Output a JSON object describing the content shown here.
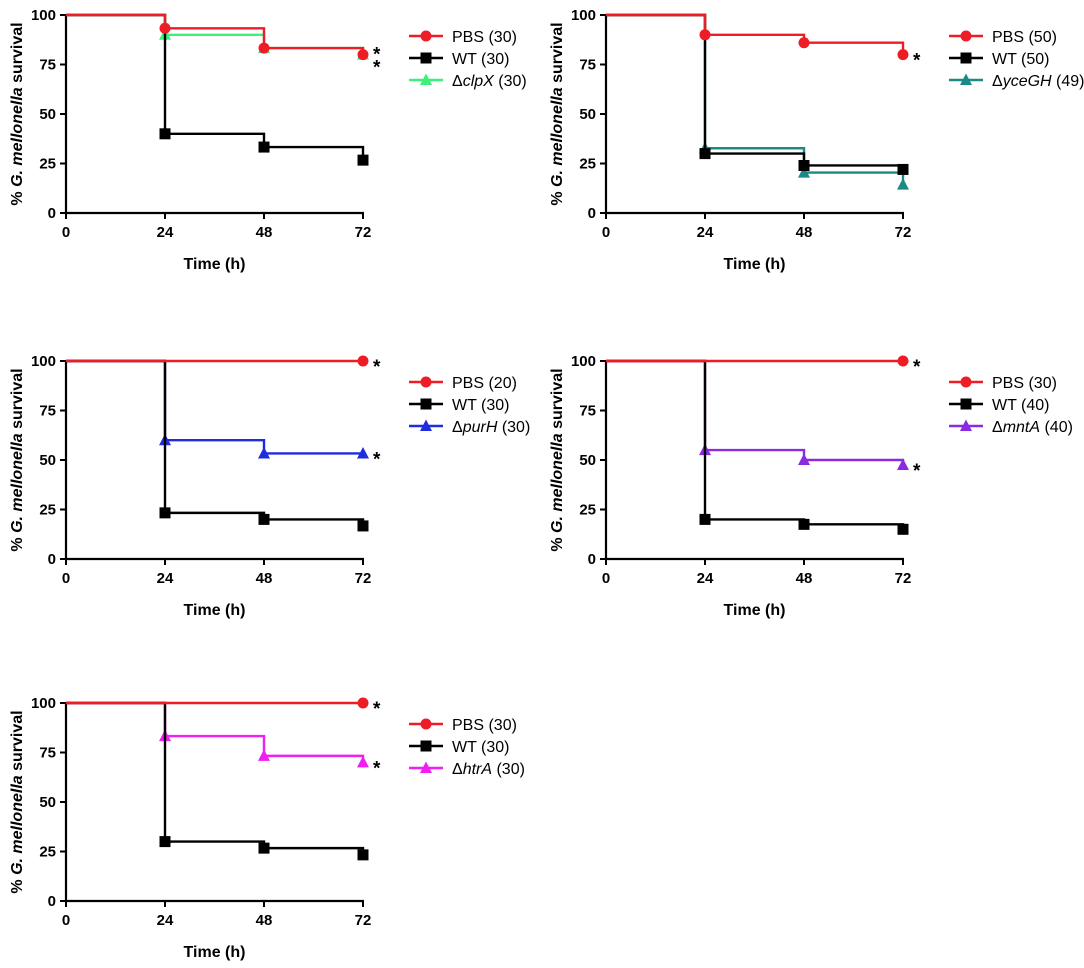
{
  "chart_data": [
    {
      "type": "line",
      "xlabel": "Time (h)",
      "ylabel_prefix": "% ",
      "ylabel_italic": "G. mellonella",
      "ylabel_suffix": " survival",
      "x_ticks": [
        "0",
        "24",
        "48",
        "72"
      ],
      "y_ticks": [
        "0",
        "25",
        "50",
        "75",
        "100"
      ],
      "xlim": [
        0,
        72
      ],
      "ylim": [
        0,
        100
      ],
      "legend_position": "top-right",
      "series": [
        {
          "name_pre": "PBS (30)",
          "name_it": "",
          "name_post": "",
          "color": "#ee1c25",
          "marker": "circle",
          "points": [
            [
              0,
              100
            ],
            [
              24,
              93.3
            ],
            [
              48,
              83.3
            ],
            [
              72,
              80
            ]
          ],
          "significant": "*"
        },
        {
          "name_pre": "WT (30)",
          "name_it": "",
          "name_post": "",
          "color": "#000000",
          "marker": "square",
          "points": [
            [
              0,
              100
            ],
            [
              24,
              40
            ],
            [
              48,
              33.3
            ],
            [
              72,
              26.7
            ]
          ],
          "significant": ""
        },
        {
          "name_pre": "Δ",
          "name_it": "clpX",
          "name_post": " (30)",
          "color": "#3cf07a",
          "marker": "triangle",
          "points": [
            [
              0,
              100
            ],
            [
              24,
              90
            ],
            [
              48,
              83.3
            ],
            [
              72,
              80
            ]
          ],
          "significant": "*"
        }
      ]
    },
    {
      "type": "line",
      "xlabel": "Time (h)",
      "ylabel_prefix": "% ",
      "ylabel_italic": "G. mellonella",
      "ylabel_suffix": " survival",
      "x_ticks": [
        "0",
        "24",
        "48",
        "72"
      ],
      "y_ticks": [
        "0",
        "25",
        "50",
        "75",
        "100"
      ],
      "xlim": [
        0,
        72
      ],
      "ylim": [
        0,
        100
      ],
      "legend_position": "top-right",
      "series": [
        {
          "name_pre": "PBS (50)",
          "name_it": "",
          "name_post": "",
          "color": "#ee1c25",
          "marker": "circle",
          "points": [
            [
              0,
              100
            ],
            [
              24,
              90
            ],
            [
              48,
              86
            ],
            [
              72,
              80
            ]
          ],
          "significant": "*"
        },
        {
          "name_pre": "WT (50)",
          "name_it": "",
          "name_post": "",
          "color": "#000000",
          "marker": "square",
          "points": [
            [
              0,
              100
            ],
            [
              24,
              30
            ],
            [
              48,
              24
            ],
            [
              72,
              22
            ]
          ],
          "significant": ""
        },
        {
          "name_pre": "Δ",
          "name_it": "yceGH",
          "name_post": " (49)",
          "color": "#1a8a84",
          "marker": "triangle",
          "points": [
            [
              0,
              100
            ],
            [
              24,
              32.7
            ],
            [
              48,
              20.4
            ],
            [
              72,
              14.3
            ]
          ],
          "significant": ""
        }
      ]
    },
    {
      "type": "line",
      "xlabel": "Time (h)",
      "ylabel_prefix": "% ",
      "ylabel_italic": "G. mellonella",
      "ylabel_suffix": " survival",
      "x_ticks": [
        "0",
        "24",
        "48",
        "72"
      ],
      "y_ticks": [
        "0",
        "25",
        "50",
        "75",
        "100"
      ],
      "xlim": [
        0,
        72
      ],
      "ylim": [
        0,
        100
      ],
      "legend_position": "top-right",
      "series": [
        {
          "name_pre": "PBS (20)",
          "name_it": "",
          "name_post": "",
          "color": "#ee1c25",
          "marker": "circle",
          "points": [
            [
              0,
              100
            ],
            [
              72,
              100
            ]
          ],
          "significant": "*"
        },
        {
          "name_pre": "WT (30)",
          "name_it": "",
          "name_post": "",
          "color": "#000000",
          "marker": "square",
          "points": [
            [
              0,
              100
            ],
            [
              24,
              23.3
            ],
            [
              48,
              20
            ],
            [
              72,
              16.7
            ]
          ],
          "significant": ""
        },
        {
          "name_pre": "Δ",
          "name_it": "purH",
          "name_post": " (30)",
          "color": "#1f2ddc",
          "marker": "triangle",
          "points": [
            [
              0,
              100
            ],
            [
              24,
              60
            ],
            [
              48,
              53.3
            ],
            [
              72,
              53.3
            ]
          ],
          "significant": "*"
        }
      ]
    },
    {
      "type": "line",
      "xlabel": "Time (h)",
      "ylabel_prefix": "% ",
      "ylabel_italic": "G. mellonella",
      "ylabel_suffix": " survival",
      "x_ticks": [
        "0",
        "24",
        "48",
        "72"
      ],
      "y_ticks": [
        "0",
        "25",
        "50",
        "75",
        "100"
      ],
      "xlim": [
        0,
        72
      ],
      "ylim": [
        0,
        100
      ],
      "legend_position": "top-right",
      "series": [
        {
          "name_pre": "PBS (30)",
          "name_it": "",
          "name_post": "",
          "color": "#ee1c25",
          "marker": "circle",
          "points": [
            [
              0,
              100
            ],
            [
              72,
              100
            ]
          ],
          "significant": "*"
        },
        {
          "name_pre": "WT (40)",
          "name_it": "",
          "name_post": "",
          "color": "#000000",
          "marker": "square",
          "points": [
            [
              0,
              100
            ],
            [
              24,
              20
            ],
            [
              48,
              17.5
            ],
            [
              72,
              15
            ]
          ],
          "significant": ""
        },
        {
          "name_pre": "Δ",
          "name_it": "mntA",
          "name_post": " (40)",
          "color": "#8a2be2",
          "marker": "triangle",
          "points": [
            [
              0,
              100
            ],
            [
              24,
              55
            ],
            [
              48,
              50
            ],
            [
              72,
              47.5
            ]
          ],
          "significant": "*"
        }
      ]
    },
    {
      "type": "line",
      "xlabel": "Time (h)",
      "ylabel_prefix": "% ",
      "ylabel_italic": "G. mellonella",
      "ylabel_suffix": " survival",
      "x_ticks": [
        "0",
        "24",
        "48",
        "72"
      ],
      "y_ticks": [
        "0",
        "25",
        "50",
        "75",
        "100"
      ],
      "xlim": [
        0,
        72
      ],
      "ylim": [
        0,
        100
      ],
      "legend_position": "top-right",
      "series": [
        {
          "name_pre": "PBS (30)",
          "name_it": "",
          "name_post": "",
          "color": "#ee1c25",
          "marker": "circle",
          "points": [
            [
              0,
              100
            ],
            [
              72,
              100
            ]
          ],
          "significant": "*"
        },
        {
          "name_pre": "WT (30)",
          "name_it": "",
          "name_post": "",
          "color": "#000000",
          "marker": "square",
          "points": [
            [
              0,
              100
            ],
            [
              24,
              30
            ],
            [
              48,
              26.7
            ],
            [
              72,
              23.3
            ]
          ],
          "significant": ""
        },
        {
          "name_pre": "Δ",
          "name_it": "htrA",
          "name_post": " (30)",
          "color": "#f01ef0",
          "marker": "triangle",
          "points": [
            [
              0,
              100
            ],
            [
              24,
              83.3
            ],
            [
              48,
              73.3
            ],
            [
              72,
              70
            ]
          ],
          "significant": "*"
        }
      ]
    }
  ]
}
